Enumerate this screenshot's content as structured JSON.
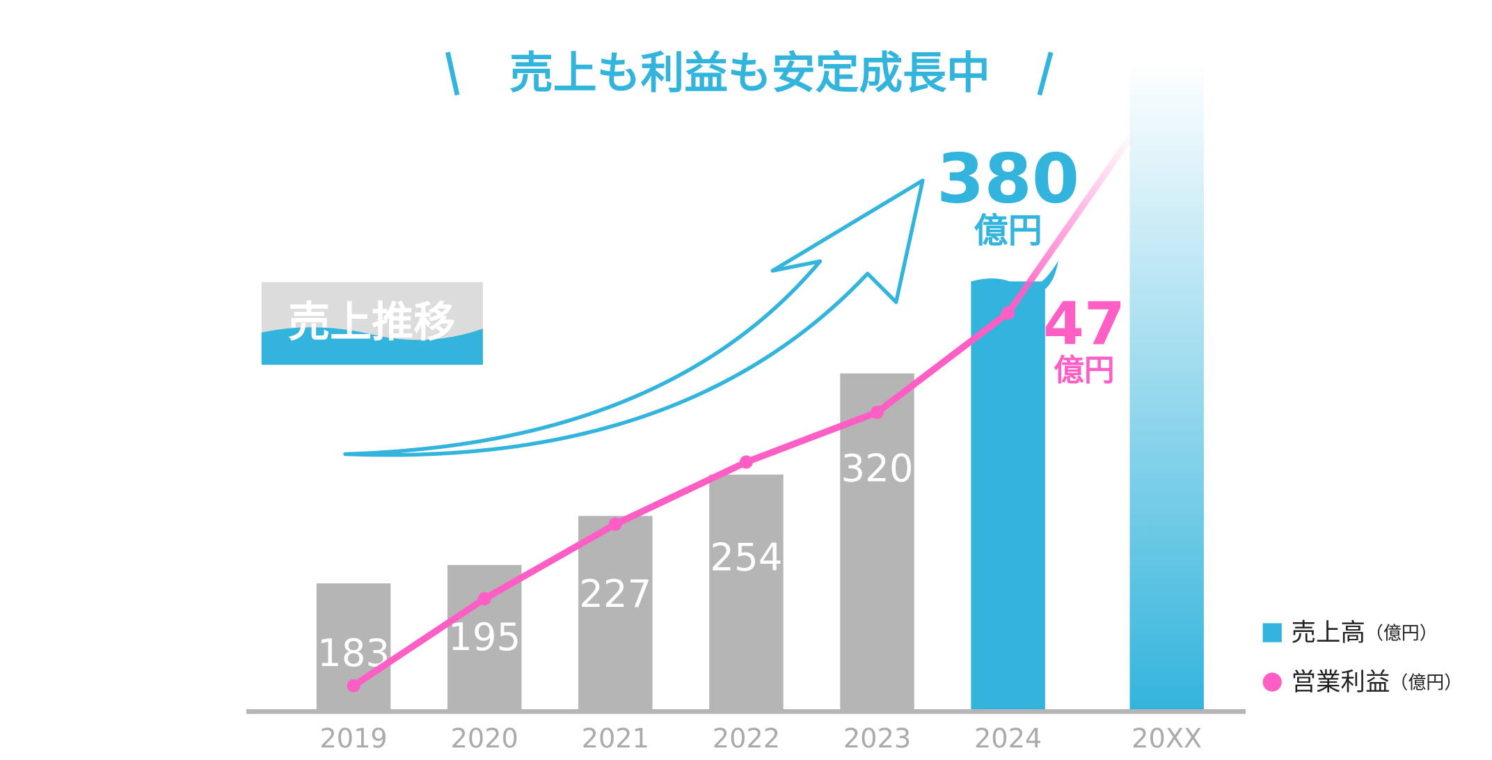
{
  "chart_data": {
    "type": "bar_line",
    "title": "売上も利益も安定成長中",
    "badge": "売上推移",
    "categories": [
      "2019",
      "2020",
      "2021",
      "2022",
      "2023",
      "2024",
      "20XX"
    ],
    "series": [
      {
        "name": "売上高",
        "type": "bar",
        "color": "#33b4dc",
        "colors": [
          "#b5b5b5",
          "#b5b5b5",
          "#b5b5b5",
          "#b5b5b5",
          "#b5b5b5",
          "#33b4dc",
          "#33b4dc"
        ],
        "values": [
          183,
          195,
          227,
          254,
          320,
          380,
          null
        ]
      },
      {
        "name": "営業利益",
        "type": "line",
        "axis": "y2",
        "color": "#ff5ec4",
        "values": [
          17,
          24,
          30,
          35,
          39,
          47,
          null
        ]
      }
    ],
    "value_unit": "億円",
    "legend_unit": "（億円）",
    "ylim": [
      100,
      400
    ],
    "y2lim": [
      15,
      52
    ]
  }
}
